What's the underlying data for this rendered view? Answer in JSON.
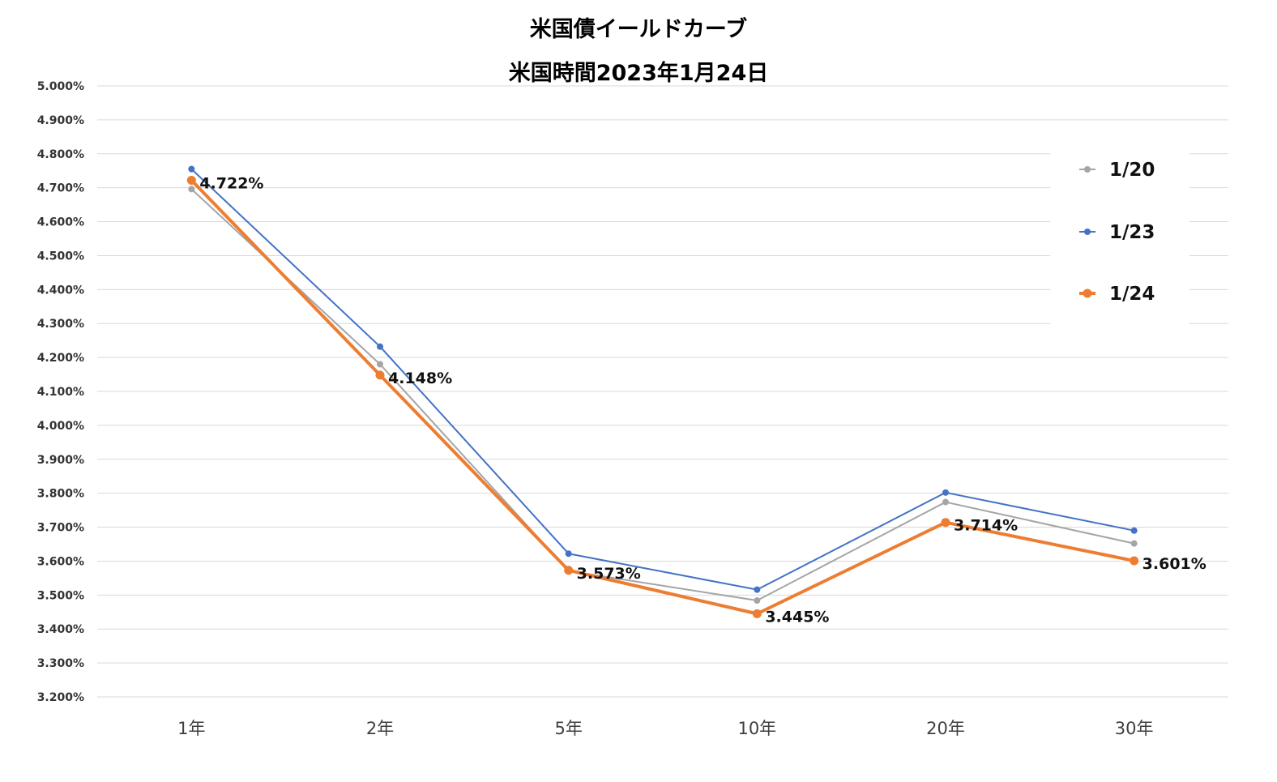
{
  "chart_data": {
    "type": "line",
    "title": "米国債イールドカーブ",
    "subtitle": "米国時間2023年1月24日",
    "categories": [
      "1年",
      "2年",
      "5年",
      "10年",
      "20年",
      "30年"
    ],
    "ylim": [
      3.2,
      5.0
    ],
    "yticks": [
      "5.000%",
      "4.900%",
      "4.800%",
      "4.700%",
      "4.600%",
      "4.500%",
      "4.400%",
      "4.300%",
      "4.200%",
      "4.100%",
      "4.000%",
      "3.900%",
      "3.800%",
      "3.700%",
      "3.600%",
      "3.500%",
      "3.400%",
      "3.300%",
      "3.200%"
    ],
    "ytick_values": [
      5.0,
      4.9,
      4.8,
      4.7,
      4.6,
      4.5,
      4.4,
      4.3,
      4.2,
      4.1,
      4.0,
      3.9,
      3.8,
      3.7,
      3.6,
      3.5,
      3.4,
      3.3,
      3.2
    ],
    "grid": true,
    "legend_position": "right",
    "series": [
      {
        "name": "1/20",
        "color": "#a5a5a5",
        "values": [
          4.696,
          4.18,
          3.571,
          3.484,
          3.774,
          3.652
        ]
      },
      {
        "name": "1/23",
        "color": "#4472c4",
        "values": [
          4.755,
          4.232,
          3.622,
          3.516,
          3.802,
          3.69
        ]
      },
      {
        "name": "1/24",
        "color": "#ed7d31",
        "values": [
          4.722,
          4.148,
          3.573,
          3.445,
          3.714,
          3.601
        ],
        "data_labels": [
          "4.722%",
          "4.148%",
          "3.573%",
          "3.445%",
          "3.714%",
          "3.601%"
        ]
      }
    ]
  }
}
